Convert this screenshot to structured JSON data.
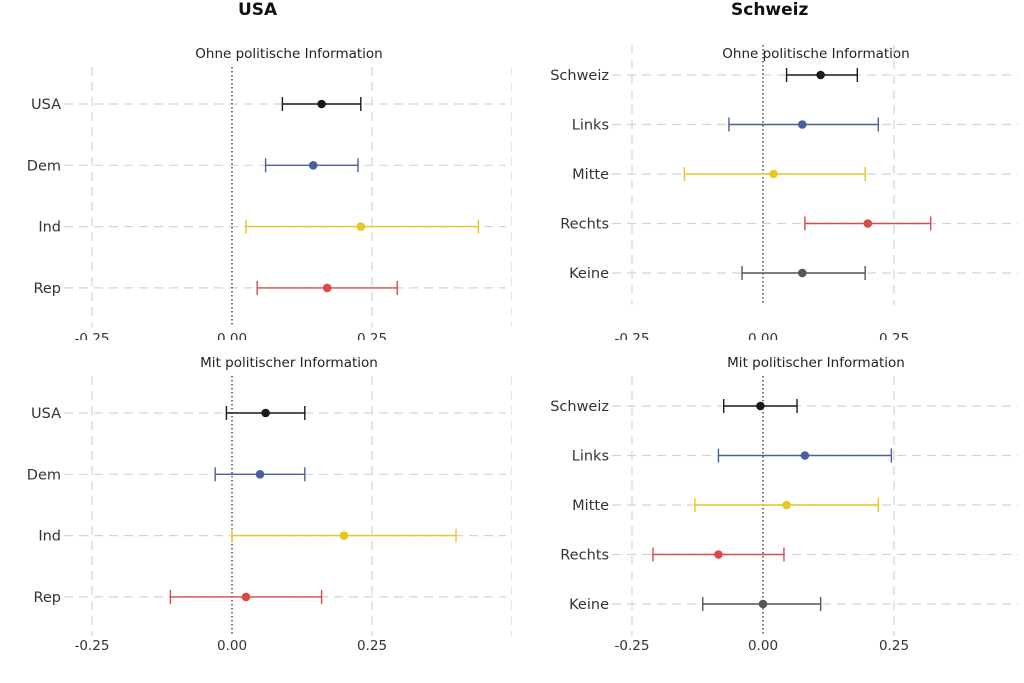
{
  "headers": {
    "left": "USA",
    "right": "Schweiz"
  },
  "colors": {
    "total": "#1a1a1a",
    "dem": "#4a5f9e",
    "ind": "#e8c623",
    "rep": "#d94a4a",
    "links": "#4a5f9e",
    "mitte": "#e8c623",
    "rechts": "#d94a4a",
    "keine": "#555555",
    "grid": "#d4d4d4",
    "zero": "#333333"
  },
  "chart_data": [
    {
      "type": "scatter",
      "title": "Ohne politische Information",
      "group": "USA",
      "xlim": [
        -0.32,
        0.52
      ],
      "xticks": [
        "-0.25",
        "0.00",
        "0.25"
      ],
      "categories": [
        "USA",
        "Dem",
        "Ind",
        "Rep"
      ],
      "series": [
        {
          "label": "USA",
          "estimate": 0.16,
          "low": 0.09,
          "high": 0.23,
          "color": "#1a1a1a"
        },
        {
          "label": "Dem",
          "estimate": 0.145,
          "low": 0.06,
          "high": 0.225,
          "color": "#4a5f9e"
        },
        {
          "label": "Ind",
          "estimate": 0.23,
          "low": 0.025,
          "high": 0.44,
          "color": "#e8c623"
        },
        {
          "label": "Rep",
          "estimate": 0.17,
          "low": 0.045,
          "high": 0.295,
          "color": "#d94a4a"
        }
      ]
    },
    {
      "type": "scatter",
      "title": "Ohne politische Information",
      "group": "Schweiz",
      "xlim": [
        -0.28,
        0.48
      ],
      "xticks": [
        "-0.25",
        "0.00",
        "0.25"
      ],
      "categories": [
        "Schweiz",
        "Links",
        "Mitte",
        "Rechts",
        "Keine"
      ],
      "series": [
        {
          "label": "Schweiz",
          "estimate": 0.11,
          "low": 0.045,
          "high": 0.18,
          "color": "#1a1a1a"
        },
        {
          "label": "Links",
          "estimate": 0.075,
          "low": -0.065,
          "high": 0.22,
          "color": "#4a5f9e"
        },
        {
          "label": "Mitte",
          "estimate": 0.02,
          "low": -0.15,
          "high": 0.195,
          "color": "#e8c623"
        },
        {
          "label": "Rechts",
          "estimate": 0.2,
          "low": 0.08,
          "high": 0.32,
          "color": "#d94a4a"
        },
        {
          "label": "Keine",
          "estimate": 0.075,
          "low": -0.04,
          "high": 0.195,
          "color": "#555555"
        }
      ]
    },
    {
      "type": "scatter",
      "title": "Mit politischer Information",
      "group": "USA",
      "xlim": [
        -0.32,
        0.52
      ],
      "xticks": [
        "-0.25",
        "0.00",
        "0.25"
      ],
      "categories": [
        "USA",
        "Dem",
        "Ind",
        "Rep"
      ],
      "series": [
        {
          "label": "USA",
          "estimate": 0.06,
          "low": -0.01,
          "high": 0.13,
          "color": "#1a1a1a"
        },
        {
          "label": "Dem",
          "estimate": 0.05,
          "low": -0.03,
          "high": 0.13,
          "color": "#4a5f9e"
        },
        {
          "label": "Ind",
          "estimate": 0.2,
          "low": 0.0,
          "high": 0.4,
          "color": "#e8c623"
        },
        {
          "label": "Rep",
          "estimate": 0.025,
          "low": -0.11,
          "high": 0.16,
          "color": "#d94a4a"
        }
      ]
    },
    {
      "type": "scatter",
      "title": "Mit politischer Information",
      "group": "Schweiz",
      "xlim": [
        -0.28,
        0.48
      ],
      "xticks": [
        "-0.25",
        "0.00",
        "0.25"
      ],
      "categories": [
        "Schweiz",
        "Links",
        "Mitte",
        "Rechts",
        "Keine"
      ],
      "series": [
        {
          "label": "Schweiz",
          "estimate": -0.005,
          "low": -0.075,
          "high": 0.065,
          "color": "#1a1a1a"
        },
        {
          "label": "Links",
          "estimate": 0.08,
          "low": -0.085,
          "high": 0.245,
          "color": "#4a5f9e"
        },
        {
          "label": "Mitte",
          "estimate": 0.045,
          "low": -0.13,
          "high": 0.22,
          "color": "#e8c623"
        },
        {
          "label": "Rechts",
          "estimate": -0.085,
          "low": -0.21,
          "high": 0.04,
          "color": "#d94a4a"
        },
        {
          "label": "Keine",
          "estimate": 0.0,
          "low": -0.115,
          "high": 0.11,
          "color": "#555555"
        }
      ]
    }
  ]
}
